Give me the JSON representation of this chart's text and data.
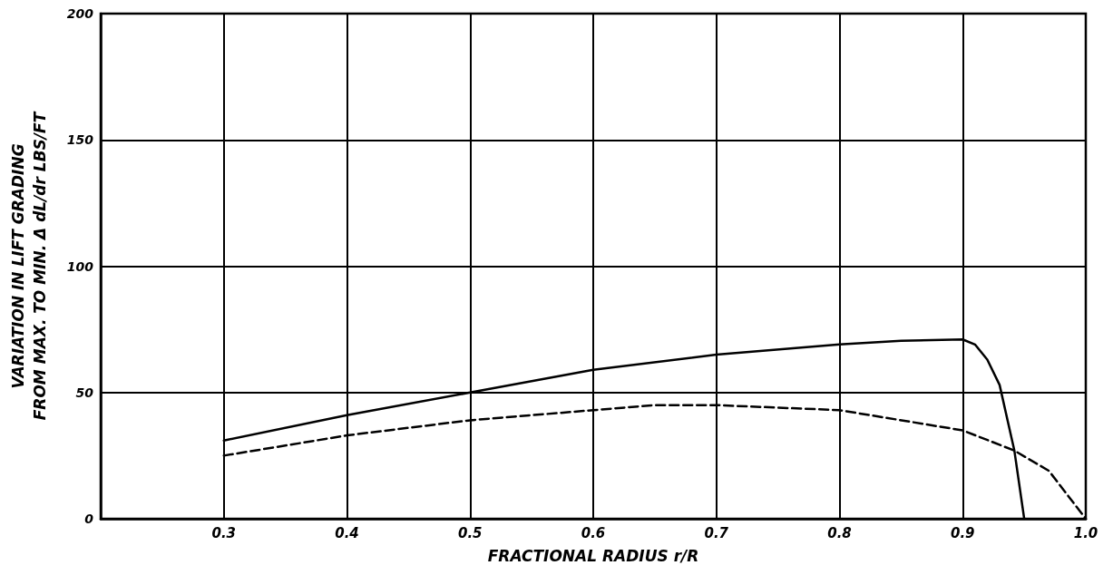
{
  "chart_data": {
    "type": "line",
    "xlabel": "FRACTIONAL RADIUS r/R",
    "ylabel": "VARIATION IN LIFT GRADING\nFROM MAX. TO MIN. Δ dL/dr LBS/FT",
    "xlim": [
      0.2,
      1.0
    ],
    "xticks": [
      0.3,
      0.4,
      0.5,
      0.6,
      0.7,
      0.8,
      0.9,
      {
        "value": 1.0,
        "label": "1.0"
      }
    ],
    "ylim": [
      0,
      200
    ],
    "yticks": [
      0,
      50,
      100,
      150,
      200
    ],
    "grid": true,
    "marker": "none",
    "series": [
      {
        "color": "#000000",
        "line_style": "solid",
        "x": [
          0.3,
          0.4,
          0.5,
          0.6,
          0.7,
          0.8,
          0.85,
          0.9,
          0.91,
          0.92,
          0.93,
          0.942,
          0.95
        ],
        "values": [
          31,
          41,
          50,
          59,
          65,
          69,
          70.5,
          71,
          69,
          63,
          53,
          27,
          0
        ]
      },
      {
        "color": "#000000",
        "line_style": "dashed",
        "x": [
          0.3,
          0.4,
          0.5,
          0.6,
          0.65,
          0.7,
          0.75,
          0.8,
          0.9,
          0.942,
          0.97,
          1.0
        ],
        "values": [
          25,
          33,
          39,
          43,
          45,
          45,
          44,
          43,
          35,
          27,
          19,
          0
        ]
      }
    ]
  }
}
